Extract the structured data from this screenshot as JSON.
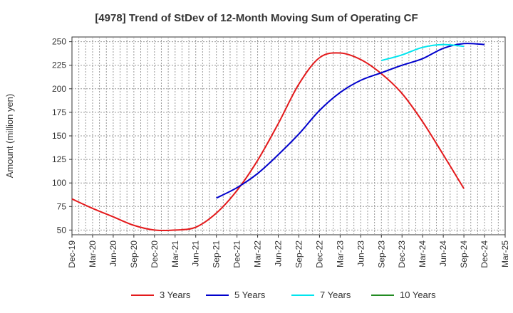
{
  "chart_data": {
    "type": "line",
    "title": "[4978]  Trend of StDev of 12-Month Moving Sum of Operating CF",
    "xlabel": "",
    "ylabel": "Amount (million yen)",
    "ylim": [
      45,
      255
    ],
    "yticks": [
      50,
      75,
      100,
      125,
      150,
      175,
      200,
      225,
      250
    ],
    "grid": true,
    "legend_position": "bottom",
    "x_categories": [
      "Dec-19",
      "Mar-20",
      "Jun-20",
      "Sep-20",
      "Dec-20",
      "Mar-21",
      "Jun-21",
      "Sep-21",
      "Dec-21",
      "Mar-22",
      "Jun-22",
      "Sep-22",
      "Dec-22",
      "Mar-23",
      "Jun-23",
      "Sep-23",
      "Dec-23",
      "Mar-24",
      "Jun-24",
      "Sep-24",
      "Dec-24",
      "Mar-25"
    ],
    "series": [
      {
        "name": "3 Years",
        "color": "#e31a1c",
        "start_index": 0,
        "values": [
          83,
          73,
          64,
          55,
          50,
          50,
          53,
          68,
          92,
          124,
          163,
          205,
          233,
          238,
          231,
          216,
          195,
          165,
          130,
          94
        ]
      },
      {
        "name": "5 Years",
        "color": "#0000cc",
        "start_index": 7,
        "values": [
          84,
          95,
          110,
          130,
          152,
          177,
          196,
          209,
          217,
          225,
          232,
          243,
          248,
          247
        ]
      },
      {
        "name": "7 Years",
        "color": "#00e5ee",
        "start_index": 15,
        "values": [
          230,
          236,
          244,
          247,
          245
        ]
      },
      {
        "name": "10 Years",
        "color": "#228b22",
        "start_index": 0,
        "values": []
      }
    ]
  }
}
